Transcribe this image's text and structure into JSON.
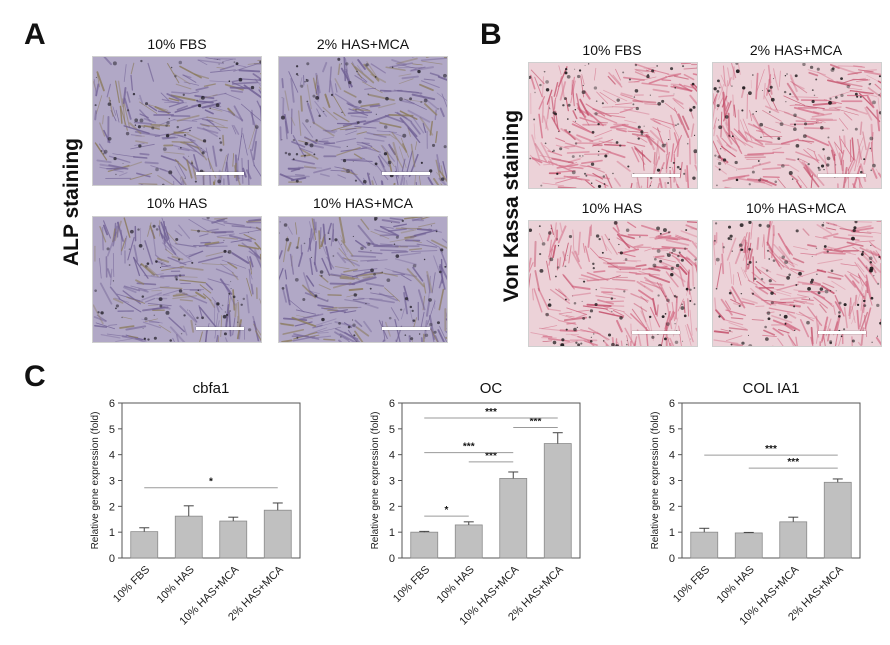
{
  "panel_a": {
    "letter": "A",
    "side_label": "ALP staining",
    "images": [
      {
        "title": "10% FBS"
      },
      {
        "title": "2% HAS+MCA"
      },
      {
        "title": "10% HAS"
      },
      {
        "title": "10% HAS+MCA"
      }
    ],
    "colors": {
      "base": "#b1a8c6",
      "fiber": "#6f5f93",
      "dark": "#2e2a35",
      "accent": "#8a7a5a"
    }
  },
  "panel_b": {
    "letter": "B",
    "side_label": "Von Kassa staining",
    "images": [
      {
        "title": "10% FBS"
      },
      {
        "title": "2% HAS+MCA"
      },
      {
        "title": "10% HAS"
      },
      {
        "title": "10% HAS+MCA"
      }
    ],
    "colors": {
      "base": "#ecd2d8",
      "fiber": "#d46f88",
      "dark": "#1e1a1c",
      "accent": "#c24a66"
    }
  },
  "panel_c": {
    "letter": "C"
  },
  "chart_data": [
    {
      "type": "bar",
      "title": "cbfa1",
      "ylabel": "Relative gene expression (fold)",
      "ylim": [
        0,
        6
      ],
      "yticks": [
        "0",
        "1",
        "2",
        "3",
        "4",
        "5",
        "6"
      ],
      "categories": [
        "10% FBS",
        "10% HAS",
        "10% HAS+MCA",
        "2% HAS+MCA"
      ],
      "values": [
        1.02,
        1.62,
        1.43,
        1.85
      ],
      "errors": [
        0.15,
        0.4,
        0.15,
        0.28
      ],
      "significance": [
        {
          "from": 0,
          "to": 3,
          "label": "*",
          "y": 2.72
        }
      ],
      "bar_color": "#c0c0c0"
    },
    {
      "type": "bar",
      "title": "OC",
      "ylabel": "Relative gene expression (fold)",
      "ylim": [
        0,
        6
      ],
      "yticks": [
        "0",
        "1",
        "2",
        "3",
        "4",
        "5",
        "6"
      ],
      "categories": [
        "10% FBS",
        "10% HAS",
        "10% HAS+MCA",
        "2% HAS+MCA"
      ],
      "values": [
        1.0,
        1.28,
        3.08,
        4.43
      ],
      "errors": [
        0.03,
        0.12,
        0.25,
        0.42
      ],
      "significance": [
        {
          "from": 0,
          "to": 1,
          "label": "*",
          "y": 1.62
        },
        {
          "from": 1,
          "to": 2,
          "label": "***",
          "y": 3.72
        },
        {
          "from": 0,
          "to": 2,
          "label": "***",
          "y": 4.08
        },
        {
          "from": 2,
          "to": 3,
          "label": "***",
          "y": 5.05
        },
        {
          "from": 0,
          "to": 3,
          "label": "***",
          "y": 5.42
        }
      ],
      "bar_color": "#c0c0c0"
    },
    {
      "type": "bar",
      "title": "COL IA1",
      "ylabel": "Relative gene expression (fold)",
      "ylim": [
        0,
        6
      ],
      "yticks": [
        "0",
        "1",
        "2",
        "3",
        "4",
        "5",
        "6"
      ],
      "categories": [
        "10% FBS",
        "10% HAS",
        "10% HAS+MCA",
        "2% HAS+MCA"
      ],
      "values": [
        1.0,
        0.97,
        1.4,
        2.93
      ],
      "errors": [
        0.15,
        0.02,
        0.18,
        0.13
      ],
      "significance": [
        {
          "from": 1,
          "to": 3,
          "label": "***",
          "y": 3.48
        },
        {
          "from": 0,
          "to": 3,
          "label": "***",
          "y": 3.98
        }
      ],
      "bar_color": "#c0c0c0"
    }
  ]
}
